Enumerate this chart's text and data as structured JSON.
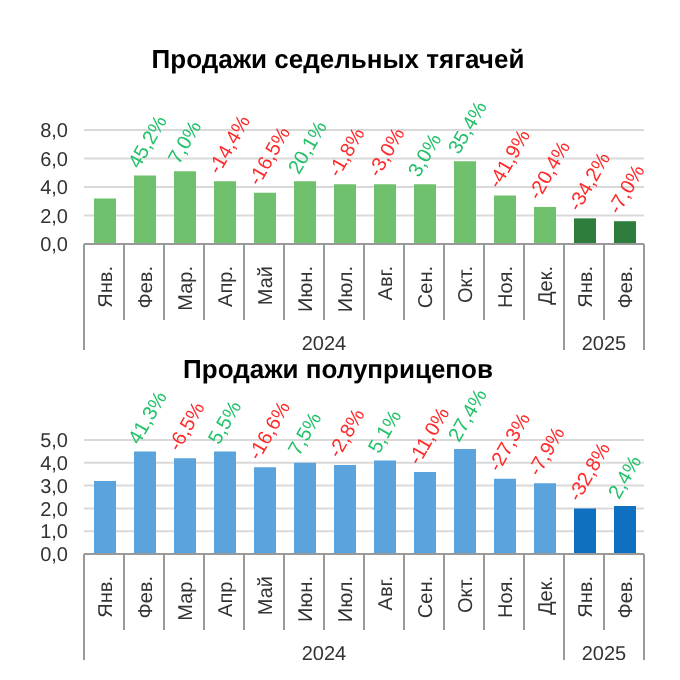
{
  "chart_data": [
    {
      "type": "bar",
      "title": "Продажи седельных тягачей",
      "categories": [
        "Янв.",
        "Фев.",
        "Мар.",
        "Апр.",
        "Май",
        "Июн.",
        "Июл.",
        "Авг.",
        "Сен.",
        "Окт.",
        "Ноя.",
        "Дек.",
        "Янв.",
        "Фев."
      ],
      "values": [
        3.2,
        4.8,
        5.1,
        4.4,
        3.6,
        4.4,
        4.2,
        4.2,
        4.2,
        5.8,
        3.4,
        2.6,
        1.8,
        1.6
      ],
      "colors": [
        "#70c16d",
        "#70c16d",
        "#70c16d",
        "#70c16d",
        "#70c16d",
        "#70c16d",
        "#70c16d",
        "#70c16d",
        "#70c16d",
        "#70c16d",
        "#70c16d",
        "#70c16d",
        "#2e7d3c",
        "#2e7d3c"
      ],
      "ylim": [
        0,
        8
      ],
      "yticks": [
        {
          "value": 0,
          "label": "0,0"
        },
        {
          "value": 2,
          "label": "2,0"
        },
        {
          "value": 4,
          "label": "4,0"
        },
        {
          "value": 6,
          "label": "6,0"
        },
        {
          "value": 8,
          "label": "8,0"
        }
      ],
      "grid": "y",
      "annotations": [
        "2024",
        "2025",
        "45,2%",
        "7,0%",
        "-14,4%",
        "-16,5%",
        "20,1%",
        "-1,8%",
        "-3,0%",
        "3,0%",
        "35,4%",
        "-41,9%",
        "-20,4%",
        "-34,2%",
        "-7,0%"
      ]
    },
    {
      "type": "bar",
      "title": "Продажи полуприцепов",
      "categories": [
        "Янв.",
        "Фев.",
        "Мар.",
        "Апр.",
        "Май",
        "Июн.",
        "Июл.",
        "Авг.",
        "Сен.",
        "Окт.",
        "Ноя.",
        "Дек.",
        "Янв.",
        "Фев."
      ],
      "values": [
        3.2,
        4.5,
        4.2,
        4.5,
        3.8,
        4.0,
        3.9,
        4.1,
        3.6,
        4.6,
        3.3,
        3.1,
        2.0,
        2.1
      ],
      "colors": [
        "#5ba3dc",
        "#5ba3dc",
        "#5ba3dc",
        "#5ba3dc",
        "#5ba3dc",
        "#5ba3dc",
        "#5ba3dc",
        "#5ba3dc",
        "#5ba3dc",
        "#5ba3dc",
        "#5ba3dc",
        "#5ba3dc",
        "#0f6fc0",
        "#0f6fc0"
      ],
      "ylim": [
        0,
        5
      ],
      "yticks": [
        {
          "value": 0,
          "label": "0,0"
        },
        {
          "value": 1,
          "label": "1,0"
        },
        {
          "value": 2,
          "label": "2,0"
        },
        {
          "value": 3,
          "label": "3,0"
        },
        {
          "value": 4,
          "label": "4,0"
        },
        {
          "value": 5,
          "label": "5,0"
        }
      ],
      "grid": "y",
      "annotations": [
        "2024",
        "2025",
        "41,3%",
        "-6,5%",
        "5,5%",
        "-16,6%",
        "7,5%",
        "-2,8%",
        "5,1%",
        "-11,0%",
        "27,4%",
        "-27,3%",
        "-7,9%",
        "-32,8%",
        "2,4%"
      ]
    }
  ]
}
